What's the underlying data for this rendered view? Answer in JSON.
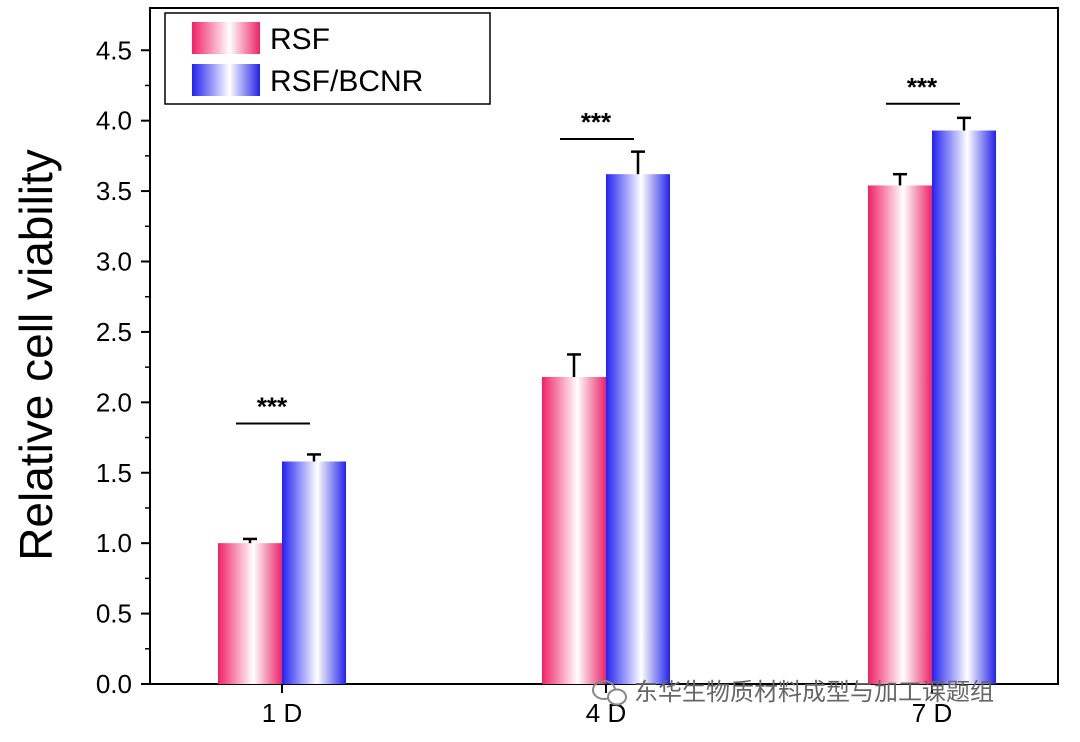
{
  "chart_data": {
    "type": "bar",
    "title": "",
    "xlabel": "",
    "ylabel": "Relative cell viability",
    "categories": [
      "1 D",
      "4 D",
      "7 D"
    ],
    "series": [
      {
        "name": "RSF",
        "values": [
          1.0,
          2.18,
          3.54
        ],
        "errors": [
          0.03,
          0.16,
          0.08
        ],
        "color_start": "#ee2266",
        "color_mid": "#ffffff"
      },
      {
        "name": "RSF/BCNR",
        "values": [
          1.58,
          3.62,
          3.93
        ],
        "errors": [
          0.05,
          0.16,
          0.09
        ],
        "color_start": "#2222ee",
        "color_mid": "#ffffff"
      }
    ],
    "ylim": [
      0,
      4.8
    ],
    "yticks": [
      0.0,
      0.5,
      1.0,
      1.5,
      2.0,
      2.5,
      3.0,
      3.5,
      4.0,
      4.5
    ],
    "ytick_labels": [
      "0.0",
      "0.5",
      "1.0",
      "1.5",
      "2.0",
      "2.5",
      "3.0",
      "3.5",
      "4.0",
      "4.5"
    ],
    "significance": [
      {
        "label": "***",
        "category_index": 0,
        "level": 1.85
      },
      {
        "label": "***",
        "category_index": 1,
        "level": 3.87
      },
      {
        "label": "***",
        "category_index": 2,
        "level": 4.12
      }
    ],
    "legend_position": "top-left"
  },
  "watermark": {
    "text": "东华生物质材料成型与加工课题组",
    "icon": "wechat-icon"
  }
}
